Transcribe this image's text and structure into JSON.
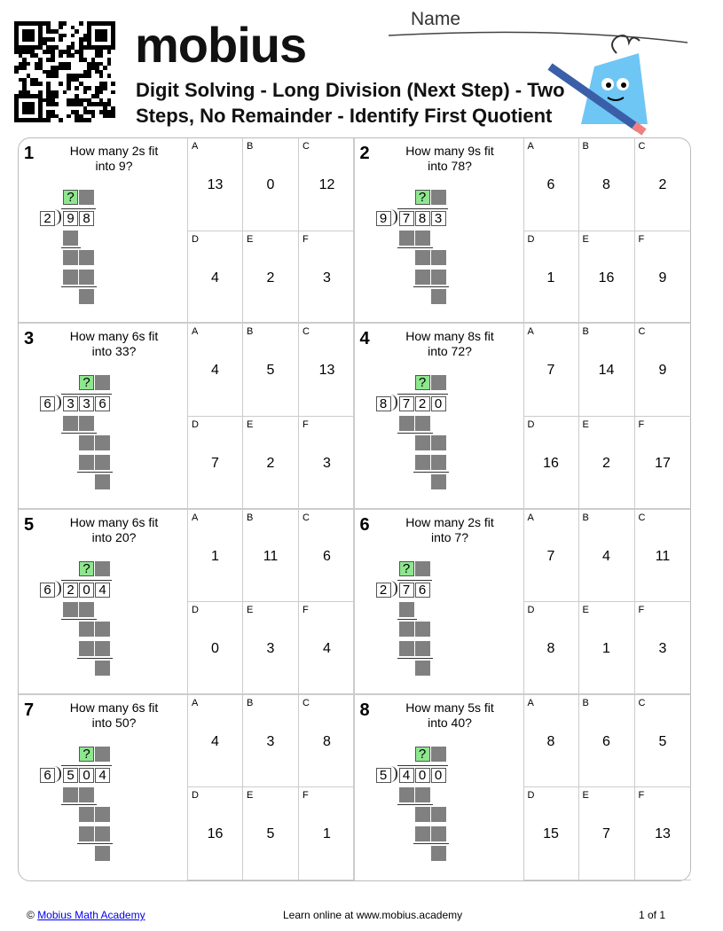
{
  "header": {
    "logo": "mobius",
    "title": "Digit Solving - Long Division (Next Step) - Two Steps, No Remainder - Identify First Quotient",
    "name_label": "Name"
  },
  "option_labels": [
    "A",
    "B",
    "C",
    "D",
    "E",
    "F"
  ],
  "quotient_placeholder": "?",
  "problems": [
    {
      "number": 1,
      "question": "How many 2s fit into 9?",
      "divisor": "2",
      "dividend": [
        "9",
        "8"
      ],
      "options": [
        13,
        0,
        12,
        4,
        2,
        3
      ]
    },
    {
      "number": 2,
      "question": "How many 9s fit into 78?",
      "divisor": "9",
      "dividend": [
        "7",
        "8",
        "3"
      ],
      "options": [
        6,
        8,
        2,
        1,
        16,
        9
      ]
    },
    {
      "number": 3,
      "question": "How many 6s fit into 33?",
      "divisor": "6",
      "dividend": [
        "3",
        "3",
        "6"
      ],
      "options": [
        4,
        5,
        13,
        7,
        2,
        3
      ]
    },
    {
      "number": 4,
      "question": "How many 8s fit into 72?",
      "divisor": "8",
      "dividend": [
        "7",
        "2",
        "0"
      ],
      "options": [
        7,
        14,
        9,
        16,
        2,
        17
      ]
    },
    {
      "number": 5,
      "question": "How many 6s fit into 20?",
      "divisor": "6",
      "dividend": [
        "2",
        "0",
        "4"
      ],
      "options": [
        1,
        11,
        6,
        0,
        3,
        4
      ]
    },
    {
      "number": 6,
      "question": "How many 2s fit into 7?",
      "divisor": "2",
      "dividend": [
        "7",
        "6"
      ],
      "options": [
        7,
        4,
        11,
        8,
        1,
        3
      ]
    },
    {
      "number": 7,
      "question": "How many 6s fit into 50?",
      "divisor": "6",
      "dividend": [
        "5",
        "0",
        "4"
      ],
      "options": [
        4,
        3,
        8,
        16,
        5,
        1
      ]
    },
    {
      "number": 8,
      "question": "How many 5s fit into 40?",
      "divisor": "5",
      "dividend": [
        "4",
        "0",
        "0"
      ],
      "options": [
        8,
        6,
        5,
        15,
        7,
        13
      ]
    }
  ],
  "footer": {
    "copyright": "©",
    "link": "Mobius Math Academy",
    "center": "Learn online at www.mobius.academy",
    "page": "1 of 1"
  }
}
